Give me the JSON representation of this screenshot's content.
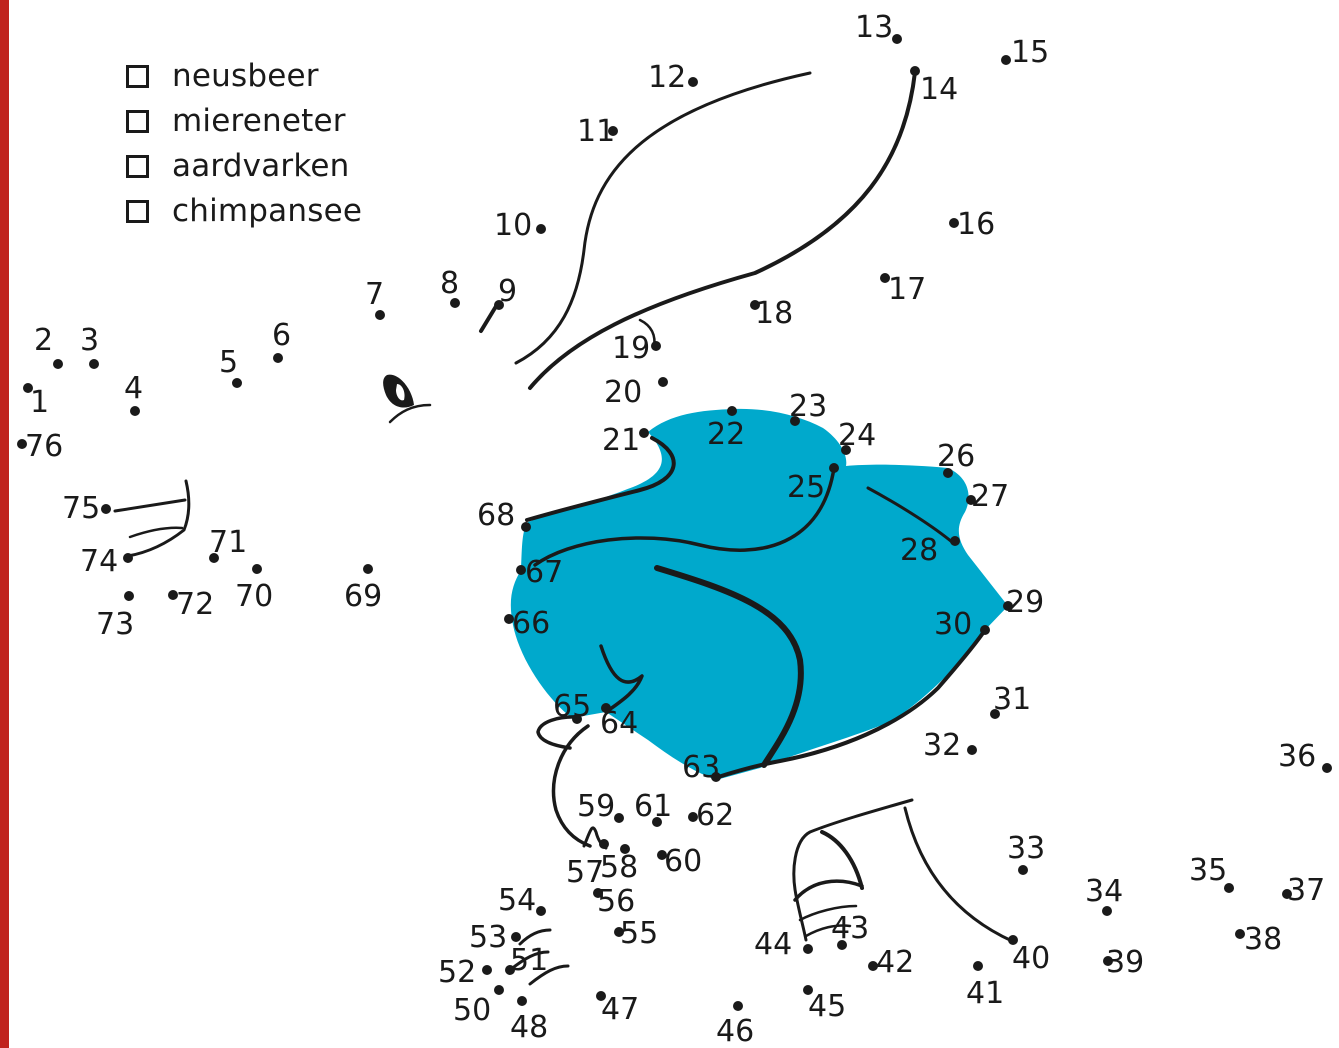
{
  "colors": {
    "border": "#c0221d",
    "fill": "#00a9cc",
    "ink": "#1a1a1a"
  },
  "options": [
    {
      "label": "neusbeer",
      "checked": false
    },
    {
      "label": "miereneter",
      "checked": false
    },
    {
      "label": "aardvarken",
      "checked": false
    },
    {
      "label": "chimpansee",
      "checked": false
    }
  ],
  "dots": [
    {
      "n": "1"
    },
    {
      "n": "2"
    },
    {
      "n": "3"
    },
    {
      "n": "4"
    },
    {
      "n": "5"
    },
    {
      "n": "6"
    },
    {
      "n": "7"
    },
    {
      "n": "8"
    },
    {
      "n": "9"
    },
    {
      "n": "10"
    },
    {
      "n": "11"
    },
    {
      "n": "12"
    },
    {
      "n": "13"
    },
    {
      "n": "14"
    },
    {
      "n": "15"
    },
    {
      "n": "16"
    },
    {
      "n": "17"
    },
    {
      "n": "18"
    },
    {
      "n": "19"
    },
    {
      "n": "20"
    },
    {
      "n": "21"
    },
    {
      "n": "22"
    },
    {
      "n": "23"
    },
    {
      "n": "24"
    },
    {
      "n": "25"
    },
    {
      "n": "26"
    },
    {
      "n": "27"
    },
    {
      "n": "28"
    },
    {
      "n": "29"
    },
    {
      "n": "30"
    },
    {
      "n": "31"
    },
    {
      "n": "32"
    },
    {
      "n": "33"
    },
    {
      "n": "34"
    },
    {
      "n": "35"
    },
    {
      "n": "36"
    },
    {
      "n": "37"
    },
    {
      "n": "38"
    },
    {
      "n": "39"
    },
    {
      "n": "40"
    },
    {
      "n": "41"
    },
    {
      "n": "42"
    },
    {
      "n": "43"
    },
    {
      "n": "44"
    },
    {
      "n": "45"
    },
    {
      "n": "46"
    },
    {
      "n": "47"
    },
    {
      "n": "48"
    },
    {
      "n": "50"
    },
    {
      "n": "51"
    },
    {
      "n": "52"
    },
    {
      "n": "53"
    },
    {
      "n": "54"
    },
    {
      "n": "55"
    },
    {
      "n": "56"
    },
    {
      "n": "57"
    },
    {
      "n": "58"
    },
    {
      "n": "59"
    },
    {
      "n": "60"
    },
    {
      "n": "61"
    },
    {
      "n": "62"
    },
    {
      "n": "63"
    },
    {
      "n": "64"
    },
    {
      "n": "65"
    },
    {
      "n": "66"
    },
    {
      "n": "67"
    },
    {
      "n": "68"
    },
    {
      "n": "69"
    },
    {
      "n": "70"
    },
    {
      "n": "71"
    },
    {
      "n": "72"
    },
    {
      "n": "73"
    },
    {
      "n": "74"
    },
    {
      "n": "75"
    },
    {
      "n": "76"
    }
  ]
}
